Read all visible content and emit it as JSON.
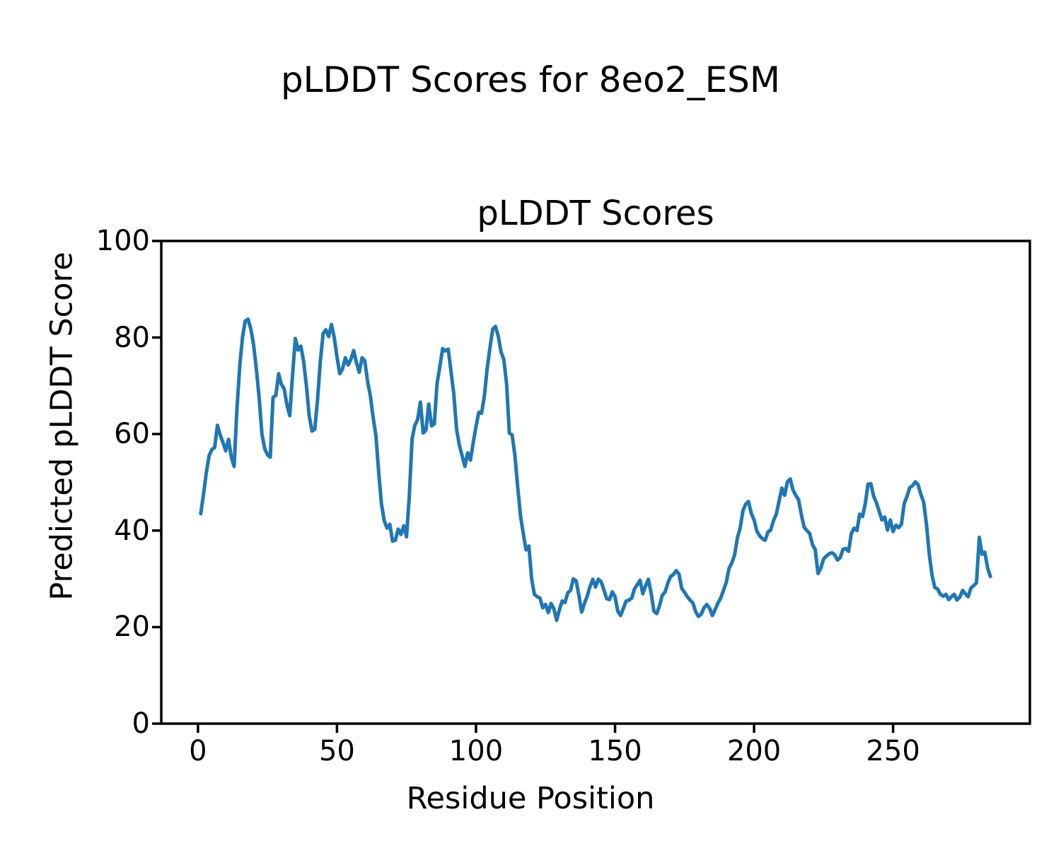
{
  "figure": {
    "suptitle": "pLDDT Scores for 8eo2_ESM",
    "axes_title": "pLDDT Scores",
    "xlabel": "Residue Position",
    "ylabel": "Predicted pLDDT Score"
  },
  "colors": {
    "line": "#1f77b4",
    "spine": "#000000",
    "text": "#000000",
    "background": "#ffffff"
  },
  "chart_data": {
    "type": "line",
    "title": "pLDDT Scores",
    "suptitle": "pLDDT Scores for 8eo2_ESM",
    "xlabel": "Residue Position",
    "ylabel": "Predicted pLDDT Score",
    "series_name": "pLDDT",
    "grid": false,
    "legend": "none",
    "x_start": 1,
    "x_step": 1,
    "n_points": 285,
    "xlim": [
      -13.2,
      299.2
    ],
    "ylim": [
      0,
      100
    ],
    "x_ticks": [
      0,
      50,
      100,
      150,
      200,
      250
    ],
    "y_ticks": [
      0,
      20,
      40,
      60,
      80,
      100
    ],
    "values": [
      43.5,
      47.5,
      52.0,
      55.5,
      56.8,
      57.2,
      61.8,
      59.8,
      58.2,
      56.5,
      58.9,
      55.2,
      53.3,
      65.0,
      74.0,
      80.0,
      83.4,
      83.8,
      81.8,
      78.5,
      73.5,
      67.5,
      60.0,
      57.0,
      55.7,
      55.2,
      67.6,
      68.0,
      72.5,
      70.3,
      69.4,
      66.0,
      63.8,
      72.0,
      79.8,
      77.4,
      78.2,
      75.0,
      70.0,
      63.8,
      60.6,
      61.0,
      67.0,
      75.0,
      80.8,
      81.6,
      80.2,
      82.7,
      80.0,
      76.0,
      72.5,
      73.5,
      75.8,
      74.3,
      75.5,
      77.3,
      74.8,
      72.8,
      75.8,
      75.2,
      70.9,
      67.9,
      63.5,
      59.6,
      52.0,
      45.5,
      42.0,
      40.5,
      41.3,
      37.8,
      38.0,
      40.3,
      39.2,
      41.0,
      38.7,
      47.0,
      59.0,
      61.8,
      63.0,
      66.6,
      60.2,
      60.8,
      66.2,
      61.7,
      62.1,
      70.5,
      74.0,
      77.7,
      77.2,
      77.6,
      73.0,
      68.4,
      61.0,
      57.7,
      55.5,
      53.3,
      56.1,
      54.6,
      58.2,
      61.6,
      64.5,
      64.3,
      67.9,
      73.5,
      77.8,
      81.7,
      82.3,
      80.3,
      77.0,
      75.4,
      70.4,
      60.2,
      59.8,
      55.5,
      49.0,
      43.0,
      39.4,
      36.0,
      36.8,
      30.0,
      26.8,
      26.3,
      26.0,
      24.0,
      24.7,
      23.0,
      24.9,
      23.8,
      21.4,
      23.6,
      25.4,
      25.1,
      27.1,
      27.6,
      30.0,
      29.6,
      26.6,
      23.1,
      24.9,
      26.4,
      28.4,
      29.9,
      28.3,
      29.9,
      29.4,
      27.7,
      25.9,
      25.7,
      27.3,
      26.3,
      23.3,
      22.4,
      23.9,
      25.4,
      25.6,
      26.0,
      27.9,
      28.8,
      29.7,
      26.9,
      28.6,
      29.9,
      27.0,
      23.3,
      22.8,
      24.4,
      26.6,
      27.3,
      29.1,
      30.5,
      30.9,
      31.7,
      31.0,
      28.0,
      27.2,
      26.3,
      25.6,
      25.0,
      23.2,
      22.2,
      22.7,
      24.0,
      24.7,
      23.9,
      22.4,
      23.6,
      25.0,
      26.0,
      27.6,
      29.3,
      32.2,
      33.3,
      34.9,
      38.5,
      40.5,
      44.1,
      45.5,
      46.0,
      43.6,
      42.2,
      39.9,
      38.9,
      38.3,
      38.0,
      39.7,
      40.1,
      42.1,
      43.4,
      46.1,
      48.8,
      47.3,
      50.1,
      50.7,
      48.4,
      47.3,
      46.4,
      43.3,
      40.7,
      40.0,
      39.4,
      37.1,
      36.1,
      31.1,
      32.2,
      34.1,
      34.7,
      35.2,
      35.4,
      35.0,
      33.9,
      34.4,
      36.1,
      36.3,
      35.7,
      39.4,
      40.5,
      40.0,
      43.4,
      42.9,
      45.6,
      49.6,
      49.7,
      47.1,
      45.8,
      44.0,
      42.2,
      42.8,
      40.1,
      42.2,
      39.8,
      41.1,
      40.6,
      41.3,
      45.6,
      47.1,
      48.9,
      49.3,
      50.1,
      49.5,
      47.5,
      45.9,
      41.3,
      35.2,
      30.8,
      28.2,
      27.9,
      26.8,
      26.4,
      26.8,
      25.7,
      26.3,
      26.8,
      25.6,
      26.2,
      27.6,
      26.9,
      26.3,
      28.1,
      28.6,
      29.2,
      38.6,
      35.1,
      35.5,
      32.2,
      30.5
    ]
  }
}
